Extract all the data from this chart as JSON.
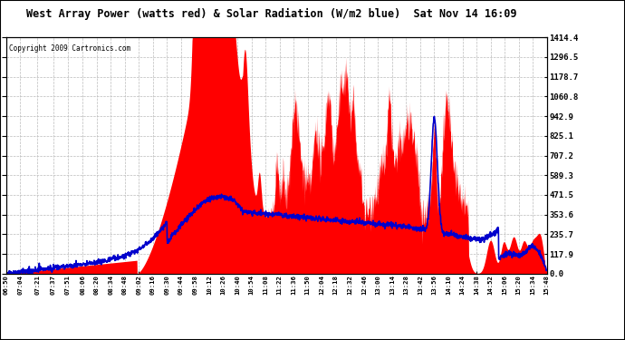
{
  "title": "West Array Power (watts red) & Solar Radiation (W/m2 blue)  Sat Nov 14 16:09",
  "copyright": "Copyright 2009 Cartronics.com",
  "background_color": "#ffffff",
  "plot_bg_color": "#ffffff",
  "grid_color": "#bbbbbb",
  "red_color": "#ff0000",
  "blue_color": "#0000cc",
  "y_ticks": [
    0.0,
    117.9,
    235.7,
    353.6,
    471.5,
    589.3,
    707.2,
    825.1,
    942.9,
    1060.8,
    1178.7,
    1296.5,
    1414.4
  ],
  "x_labels": [
    "06:50",
    "07:04",
    "07:21",
    "07:37",
    "07:51",
    "08:06",
    "08:20",
    "08:34",
    "08:48",
    "09:02",
    "09:16",
    "09:30",
    "09:44",
    "09:58",
    "10:12",
    "10:26",
    "10:40",
    "10:54",
    "11:08",
    "11:22",
    "11:36",
    "11:50",
    "12:04",
    "12:18",
    "12:32",
    "12:46",
    "13:00",
    "13:14",
    "13:28",
    "13:42",
    "13:56",
    "14:10",
    "14:24",
    "14:38",
    "14:52",
    "15:06",
    "15:20",
    "15:34",
    "15:48"
  ],
  "ymax": 1414.4,
  "ymin": 0.0
}
